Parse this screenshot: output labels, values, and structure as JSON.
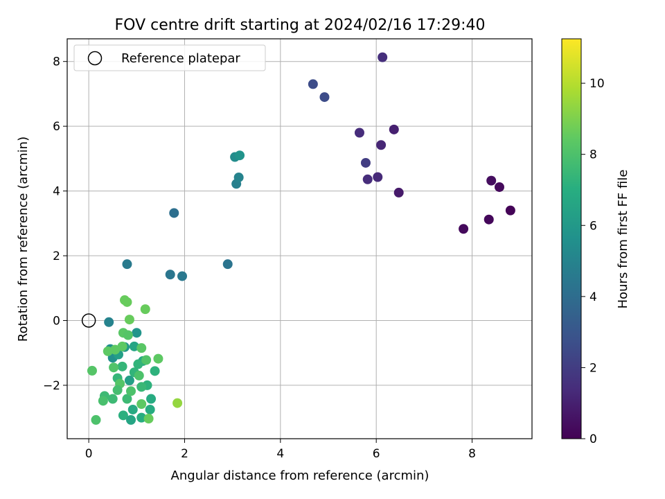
{
  "chart_data": {
    "type": "scatter",
    "title": "FOV centre drift starting at 2024/02/16 17:29:40",
    "xlabel": "Angular distance from reference (arcmin)",
    "ylabel": "Rotation from reference (arcmin)",
    "xlim": [
      -0.45,
      9.25
    ],
    "ylim": [
      -3.65,
      8.7
    ],
    "xticks": [
      0,
      2,
      4,
      6,
      8
    ],
    "yticks": [
      -2,
      0,
      2,
      4,
      6,
      8
    ],
    "xtick_labels": [
      "0",
      "2",
      "4",
      "6",
      "8"
    ],
    "ytick_labels": [
      "−2",
      "0",
      "2",
      "4",
      "6",
      "8"
    ],
    "grid": true,
    "legend": {
      "location": "upper-left",
      "label": "Reference platepar"
    },
    "reference_point": {
      "x": 0,
      "y": 0
    },
    "colorbar": {
      "label": "Hours from first FF file",
      "colormap": "viridis",
      "range": [
        0,
        11.25
      ],
      "ticks": [
        0,
        2,
        4,
        6,
        8,
        10
      ],
      "tick_labels": [
        "0",
        "2",
        "4",
        "6",
        "8",
        "10"
      ]
    },
    "points": [
      {
        "x": 8.8,
        "y": 3.4,
        "h": 0.1
      },
      {
        "x": 8.35,
        "y": 3.12,
        "h": 0.2
      },
      {
        "x": 7.82,
        "y": 2.83,
        "h": 0.3
      },
      {
        "x": 8.57,
        "y": 4.12,
        "h": 0.3
      },
      {
        "x": 8.4,
        "y": 4.32,
        "h": 0.4
      },
      {
        "x": 6.47,
        "y": 3.95,
        "h": 0.8
      },
      {
        "x": 6.37,
        "y": 5.9,
        "h": 1.0
      },
      {
        "x": 6.1,
        "y": 5.42,
        "h": 1.2
      },
      {
        "x": 6.03,
        "y": 4.43,
        "h": 1.3
      },
      {
        "x": 5.82,
        "y": 4.36,
        "h": 1.4
      },
      {
        "x": 5.65,
        "y": 5.8,
        "h": 1.4
      },
      {
        "x": 6.13,
        "y": 8.13,
        "h": 1.5
      },
      {
        "x": 5.78,
        "y": 4.87,
        "h": 2.0
      },
      {
        "x": 4.92,
        "y": 6.9,
        "h": 2.6
      },
      {
        "x": 4.68,
        "y": 7.3,
        "h": 2.6
      },
      {
        "x": 1.78,
        "y": 3.32,
        "h": 4.1
      },
      {
        "x": 2.9,
        "y": 1.74,
        "h": 4.3
      },
      {
        "x": 1.7,
        "y": 1.42,
        "h": 4.4
      },
      {
        "x": 1.95,
        "y": 1.37,
        "h": 4.5
      },
      {
        "x": 0.8,
        "y": 1.74,
        "h": 4.6
      },
      {
        "x": 3.08,
        "y": 4.22,
        "h": 4.8
      },
      {
        "x": 3.13,
        "y": 4.42,
        "h": 5.0
      },
      {
        "x": 3.05,
        "y": 5.05,
        "h": 5.4
      },
      {
        "x": 3.15,
        "y": 5.1,
        "h": 5.7
      },
      {
        "x": 0.42,
        "y": -0.05,
        "h": 5.0
      },
      {
        "x": 0.5,
        "y": -1.15,
        "h": 5.6
      },
      {
        "x": 0.45,
        "y": -0.88,
        "h": 5.6
      },
      {
        "x": 1.0,
        "y": -0.38,
        "h": 5.8
      },
      {
        "x": 0.75,
        "y": -0.82,
        "h": 6.0
      },
      {
        "x": 0.62,
        "y": -1.05,
        "h": 6.3
      },
      {
        "x": 0.85,
        "y": -1.85,
        "h": 6.3
      },
      {
        "x": 0.95,
        "y": -0.8,
        "h": 6.6
      },
      {
        "x": 1.13,
        "y": -1.25,
        "h": 6.8
      },
      {
        "x": 1.3,
        "y": -2.42,
        "h": 6.9
      },
      {
        "x": 0.92,
        "y": -2.75,
        "h": 6.8
      },
      {
        "x": 0.72,
        "y": -2.93,
        "h": 7.1
      },
      {
        "x": 0.88,
        "y": -3.07,
        "h": 6.6
      },
      {
        "x": 1.1,
        "y": -3.0,
        "h": 7.0
      },
      {
        "x": 1.28,
        "y": -2.75,
        "h": 6.9
      },
      {
        "x": 0.95,
        "y": -1.6,
        "h": 7.3
      },
      {
        "x": 1.22,
        "y": -2.0,
        "h": 7.2
      },
      {
        "x": 1.03,
        "y": -1.35,
        "h": 7.3
      },
      {
        "x": 1.38,
        "y": -1.56,
        "h": 7.2
      },
      {
        "x": 0.7,
        "y": -1.42,
        "h": 7.4
      },
      {
        "x": 0.6,
        "y": -1.78,
        "h": 7.4
      },
      {
        "x": 1.1,
        "y": -2.05,
        "h": 7.5
      },
      {
        "x": 0.8,
        "y": -2.42,
        "h": 7.6
      },
      {
        "x": 0.5,
        "y": -2.42,
        "h": 7.6
      },
      {
        "x": 0.33,
        "y": -2.33,
        "h": 7.6
      },
      {
        "x": 0.3,
        "y": -2.48,
        "h": 7.9
      },
      {
        "x": 0.15,
        "y": -3.07,
        "h": 8.0
      },
      {
        "x": 0.07,
        "y": -1.55,
        "h": 8.2
      },
      {
        "x": 0.72,
        "y": -0.38,
        "h": 8.3
      },
      {
        "x": 0.85,
        "y": 0.03,
        "h": 8.6
      },
      {
        "x": 0.75,
        "y": 0.63,
        "h": 8.6
      },
      {
        "x": 0.8,
        "y": 0.57,
        "h": 8.6
      },
      {
        "x": 1.18,
        "y": 0.35,
        "h": 8.6
      },
      {
        "x": 1.45,
        "y": -1.18,
        "h": 8.4
      },
      {
        "x": 1.1,
        "y": -0.85,
        "h": 8.3
      },
      {
        "x": 1.05,
        "y": -1.7,
        "h": 8.0
      },
      {
        "x": 1.2,
        "y": -1.22,
        "h": 8.1
      },
      {
        "x": 0.55,
        "y": -0.9,
        "h": 8.4
      },
      {
        "x": 0.52,
        "y": -1.45,
        "h": 8.1
      },
      {
        "x": 0.65,
        "y": -1.95,
        "h": 8.2
      },
      {
        "x": 0.4,
        "y": -0.95,
        "h": 8.4
      },
      {
        "x": 1.1,
        "y": -2.58,
        "h": 8.4
      },
      {
        "x": 0.88,
        "y": -2.18,
        "h": 8.0
      },
      {
        "x": 0.6,
        "y": -2.15,
        "h": 7.8
      },
      {
        "x": 0.82,
        "y": -0.45,
        "h": 8.2
      },
      {
        "x": 0.7,
        "y": -0.8,
        "h": 8.4
      },
      {
        "x": 1.25,
        "y": -3.03,
        "h": 8.6
      },
      {
        "x": 1.85,
        "y": -2.55,
        "h": 9.4
      }
    ]
  }
}
